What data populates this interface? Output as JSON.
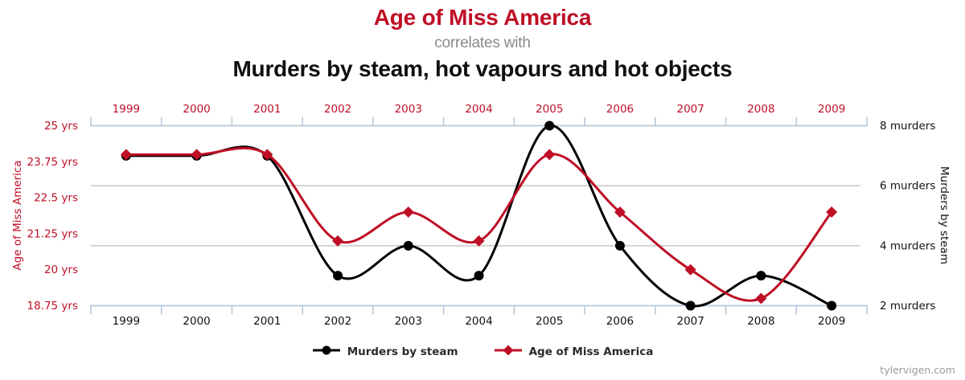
{
  "page": {
    "watermark": "tylervigen.com",
    "background": "#ffffff"
  },
  "header": {
    "title_top": "Age of Miss America",
    "title_top_color": "#bf0f26",
    "connector": "correlates with",
    "connector_color": "#8a8a8a",
    "title_bottom": "Murders by steam, hot vapours and hot objects",
    "title_bottom_color": "#0f0f0f"
  },
  "legend": {
    "items": [
      {
        "label": "Murders by steam",
        "color": "#000000",
        "marker": "circle"
      },
      {
        "label": "Age of Miss America",
        "color": "#bf0f26",
        "marker": "diamond"
      }
    ]
  },
  "chart_data": {
    "type": "line",
    "categories": [
      "1999",
      "2000",
      "2001",
      "2002",
      "2003",
      "2004",
      "2005",
      "2006",
      "2007",
      "2008",
      "2009"
    ],
    "series": [
      {
        "name": "Murders by steam",
        "axis": "right",
        "color": "#000000",
        "marker": "circle",
        "values": [
          7,
          7,
          7,
          3,
          4,
          3,
          8,
          4,
          2,
          3,
          2
        ]
      },
      {
        "name": "Age of Miss America",
        "axis": "left",
        "color": "#bf0f26",
        "marker": "diamond",
        "values": [
          24,
          24,
          24,
          21,
          22,
          21,
          24,
          22,
          20,
          19,
          22
        ]
      }
    ],
    "left_axis": {
      "title": "Age of Miss America",
      "color": "#bf0f26",
      "range": [
        18.75,
        25
      ],
      "ticks": [
        {
          "value": 25,
          "label": "25 yrs"
        },
        {
          "value": 23.75,
          "label": "23.75 yrs"
        },
        {
          "value": 22.5,
          "label": "22.5 yrs"
        },
        {
          "value": 21.25,
          "label": "21.25 yrs"
        },
        {
          "value": 20,
          "label": "20 yrs"
        },
        {
          "value": 18.75,
          "label": "18.75 yrs"
        }
      ]
    },
    "right_axis": {
      "title": "Murders by steam",
      "color": "#111111",
      "range": [
        2,
        8
      ],
      "ticks": [
        {
          "value": 8,
          "label": "8 murders"
        },
        {
          "value": 6,
          "label": "6 murders"
        },
        {
          "value": 4,
          "label": "4 murders"
        },
        {
          "value": 2,
          "label": "2 murders"
        }
      ],
      "grid_values": [
        6,
        4
      ]
    },
    "x_axis": {
      "top_label_color": "#bf0f26",
      "bottom_label_color": "#111111",
      "axis_line_color": "#b6c9dd",
      "grid_color": "#cccccc"
    },
    "legend_position": "bottom",
    "grid": true
  }
}
